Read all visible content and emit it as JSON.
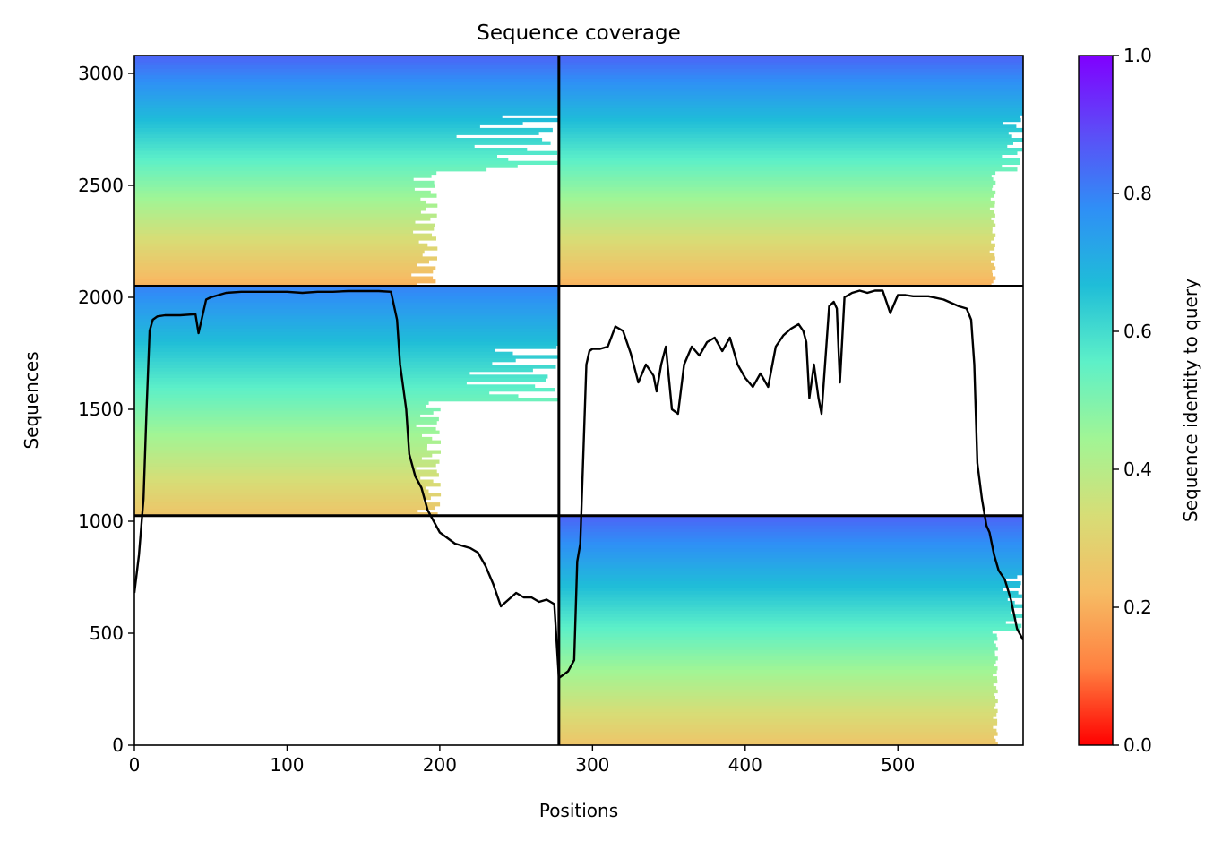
{
  "chart_data": {
    "type": "heatmap",
    "title": "Sequence coverage",
    "xlabel": "Positions",
    "ylabel": "Sequences",
    "xlim": [
      0,
      582
    ],
    "ylim": [
      0,
      3080
    ],
    "x_ticks": [
      0,
      100,
      200,
      300,
      400,
      500
    ],
    "y_ticks": [
      0,
      500,
      1000,
      1500,
      2000,
      2500,
      3000
    ],
    "colorbar": {
      "label": "Sequence identity to query",
      "range": [
        0,
        1
      ],
      "ticks": [
        "0.0",
        "0.2",
        "0.4",
        "0.6",
        "0.8",
        "1.0"
      ],
      "colormap": "rainbow_r",
      "stops": [
        "#ff0000",
        "#ff8040",
        "#f6bc64",
        "#d7dd76",
        "#a1f595",
        "#5df0c8",
        "#1fbdd8",
        "#2f8ff6",
        "#5d4cf7",
        "#8000ff"
      ]
    },
    "divider_x": [
      278
    ],
    "divider_y": [
      1025,
      2050
    ],
    "blocks": [
      {
        "x": [
          0,
          278
        ],
        "y": [
          1025,
          2050
        ],
        "identity_top": 0.8,
        "identity_bottom": 0.25,
        "main_end_x": 175
      },
      {
        "x": [
          0,
          278
        ],
        "y": [
          2050,
          3080
        ],
        "identity_top": 0.85,
        "identity_bottom": 0.2,
        "main_end_x": 172
      },
      {
        "x": [
          278,
          582
        ],
        "y": [
          0,
          1025
        ],
        "identity_top": 0.85,
        "identity_bottom": 0.25,
        "main_end_x": 560
      },
      {
        "x": [
          278,
          582
        ],
        "y": [
          2050,
          3080
        ],
        "identity_top": 0.85,
        "identity_bottom": 0.2,
        "main_end_x": 558
      }
    ],
    "coverage_line": {
      "color": "#000000",
      "x": [
        0,
        3,
        6,
        8,
        10,
        12,
        15,
        20,
        30,
        40,
        42,
        44,
        47,
        50,
        60,
        70,
        80,
        100,
        110,
        120,
        130,
        140,
        150,
        160,
        168,
        172,
        174,
        176,
        178,
        180,
        184,
        188,
        192,
        196,
        200,
        210,
        220,
        225,
        230,
        235,
        240,
        245,
        250,
        255,
        260,
        265,
        270,
        275,
        278,
        280,
        284,
        288,
        290,
        292,
        294,
        296,
        298,
        300,
        305,
        310,
        315,
        320,
        325,
        330,
        335,
        340,
        342,
        345,
        348,
        352,
        356,
        360,
        365,
        370,
        375,
        380,
        385,
        390,
        395,
        400,
        405,
        410,
        415,
        420,
        425,
        430,
        435,
        438,
        440,
        442,
        445,
        448,
        450,
        455,
        458,
        460,
        462,
        465,
        470,
        475,
        480,
        485,
        490,
        495,
        500,
        505,
        510,
        520,
        530,
        540,
        545,
        548,
        550,
        552,
        555,
        558,
        560,
        563,
        566,
        570,
        574,
        578,
        582
      ],
      "y": [
        680,
        850,
        1100,
        1500,
        1850,
        1900,
        1915,
        1920,
        1920,
        1925,
        1840,
        1900,
        1990,
        2000,
        2020,
        2025,
        2025,
        2025,
        2020,
        2025,
        2025,
        2028,
        2028,
        2028,
        2025,
        1900,
        1700,
        1600,
        1500,
        1300,
        1200,
        1150,
        1050,
        1000,
        950,
        900,
        880,
        860,
        800,
        720,
        620,
        650,
        680,
        660,
        660,
        640,
        650,
        630,
        300,
        310,
        330,
        380,
        820,
        900,
        1300,
        1700,
        1760,
        1770,
        1770,
        1780,
        1870,
        1850,
        1750,
        1620,
        1700,
        1650,
        1580,
        1700,
        1780,
        1500,
        1480,
        1700,
        1780,
        1740,
        1800,
        1820,
        1760,
        1820,
        1700,
        1640,
        1600,
        1660,
        1600,
        1780,
        1830,
        1860,
        1880,
        1850,
        1800,
        1550,
        1700,
        1550,
        1480,
        1960,
        1980,
        1950,
        1620,
        2000,
        2020,
        2030,
        2020,
        2030,
        2030,
        1930,
        2010,
        2010,
        2005,
        2005,
        1990,
        1960,
        1950,
        1900,
        1700,
        1260,
        1100,
        980,
        950,
        850,
        780,
        740,
        650,
        520,
        470
      ]
    }
  }
}
